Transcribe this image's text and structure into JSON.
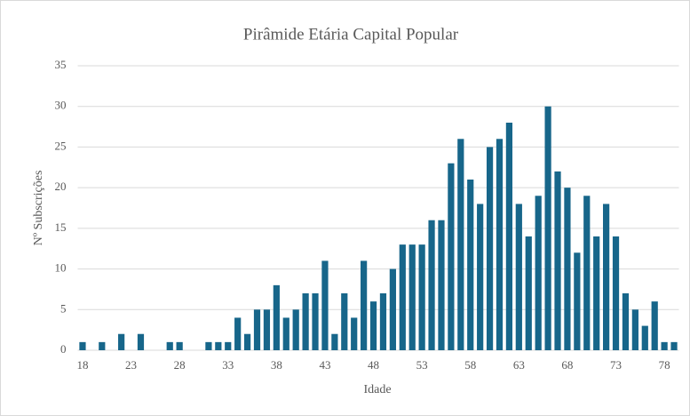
{
  "chart_data": {
    "type": "bar",
    "title": "Pirâmide Etária Capital Popular",
    "x_label": "Idade",
    "y_label": "Nº Subscrições",
    "categories": [
      "18",
      null,
      null,
      null,
      null,
      "23",
      null,
      null,
      null,
      null,
      "28",
      null,
      null,
      null,
      null,
      "33",
      null,
      null,
      null,
      null,
      "38",
      null,
      null,
      null,
      null,
      "43",
      null,
      null,
      null,
      null,
      "48",
      null,
      null,
      null,
      null,
      "53",
      null,
      null,
      null,
      null,
      "58",
      null,
      null,
      null,
      null,
      "63",
      null,
      null,
      null,
      null,
      "68",
      null,
      null,
      null,
      null,
      "73",
      null,
      null,
      null,
      null,
      "78",
      null
    ],
    "values": [
      1,
      0,
      1,
      0,
      2,
      0,
      2,
      0,
      0,
      1,
      1,
      0,
      0,
      1,
      1,
      1,
      4,
      2,
      5,
      5,
      8,
      4,
      5,
      7,
      7,
      11,
      2,
      7,
      4,
      11,
      6,
      7,
      10,
      13,
      13,
      13,
      16,
      16,
      23,
      26,
      21,
      18,
      25,
      26,
      28,
      18,
      14,
      19,
      30,
      22,
      20,
      12,
      19,
      14,
      18,
      14,
      7,
      5,
      3,
      6,
      1,
      1
    ],
    "color": "#17668a",
    "ylim": [
      0,
      35
    ],
    "yticks": [
      0,
      5,
      10,
      15,
      20,
      25,
      30,
      35
    ],
    "grid": true
  }
}
